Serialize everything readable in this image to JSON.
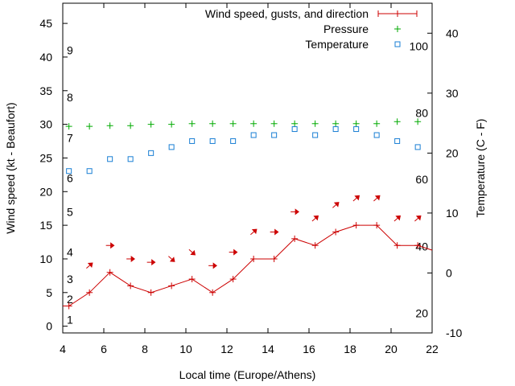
{
  "chart_data": {
    "type": "line",
    "title": "",
    "xlabel": "Local time (Europe/Athens)",
    "ylabel": "Wind speed (kt - Beaufort)",
    "y2label": "Temperature (C - F)",
    "xlim": [
      4,
      22
    ],
    "ylim": [
      -1,
      48
    ],
    "y2lim": [
      -10,
      45
    ],
    "grid": false,
    "legend_position": "top-right",
    "x_ticks": [
      4,
      6,
      8,
      10,
      12,
      14,
      16,
      18,
      20,
      22
    ],
    "y_ticks": [
      0,
      5,
      10,
      15,
      20,
      25,
      30,
      35,
      40,
      45
    ],
    "y2_ticks": [
      -10,
      0,
      10,
      20,
      30,
      40
    ],
    "beaufort_labels": [
      {
        "label": "1",
        "kt": 1
      },
      {
        "label": "2",
        "kt": 4
      },
      {
        "label": "3",
        "kt": 7
      },
      {
        "label": "4",
        "kt": 11
      },
      {
        "label": "5",
        "kt": 17
      },
      {
        "label": "6",
        "kt": 22
      },
      {
        "label": "7",
        "kt": 28
      },
      {
        "label": "8",
        "kt": 34
      },
      {
        "label": "9",
        "kt": 41
      }
    ],
    "fahrenheit_labels": [
      {
        "label": "20",
        "c": -6.7
      },
      {
        "label": "40",
        "c": 4.4
      },
      {
        "label": "60",
        "c": 15.6
      },
      {
        "label": "80",
        "c": 26.7
      },
      {
        "label": "100",
        "c": 37.8
      }
    ],
    "series": [
      {
        "name": "Wind speed, gusts, and direction",
        "axis": "y1",
        "color": "#cc0000",
        "x": [
          3.3,
          4.3,
          5.3,
          6.3,
          7.3,
          8.3,
          9.3,
          10.3,
          11.3,
          12.3,
          13.3,
          14.3,
          15.3,
          16.3,
          17.3,
          18.3,
          19.3,
          20.3,
          21.3,
          22.3
        ],
        "values": [
          3,
          3,
          5,
          8,
          6,
          5,
          6,
          7,
          5,
          7,
          10,
          10,
          13,
          12,
          14,
          15,
          15,
          12,
          12,
          11
        ]
      },
      {
        "name": "Pressure",
        "axis": "y1",
        "color": "#00aa00",
        "x": [
          4.3,
          5.3,
          6.3,
          7.3,
          8.3,
          9.3,
          10.3,
          11.3,
          12.3,
          13.3,
          14.3,
          15.3,
          16.3,
          17.3,
          18.3,
          19.3,
          20.3,
          21.3
        ],
        "values": [
          29.7,
          29.7,
          29.8,
          29.8,
          30.0,
          30.0,
          30.1,
          30.1,
          30.1,
          30.1,
          30.1,
          30.1,
          30.1,
          30.1,
          30.1,
          30.1,
          30.4,
          30.4
        ]
      },
      {
        "name": "Temperature",
        "axis": "y2",
        "color": "#1a7fd4",
        "x": [
          4.3,
          5.3,
          6.3,
          7.3,
          8.3,
          9.3,
          10.3,
          11.3,
          12.3,
          13.3,
          14.3,
          15.3,
          16.3,
          17.3,
          18.3,
          19.3,
          20.3,
          21.3
        ],
        "values": [
          17,
          17,
          19,
          19,
          20,
          21,
          22,
          22,
          22,
          23,
          23,
          24,
          23,
          24,
          24,
          23,
          22,
          21
        ]
      }
    ],
    "wind_direction_arrows": {
      "color": "#cc0000",
      "points": [
        {
          "x": 5.3,
          "kt": 9,
          "dir": "NE"
        },
        {
          "x": 6.3,
          "kt": 12,
          "dir": "E"
        },
        {
          "x": 7.3,
          "kt": 10,
          "dir": "E"
        },
        {
          "x": 8.3,
          "kt": 9.5,
          "dir": "E"
        },
        {
          "x": 9.3,
          "kt": 10,
          "dir": "SE"
        },
        {
          "x": 10.3,
          "kt": 11,
          "dir": "SE"
        },
        {
          "x": 11.3,
          "kt": 9,
          "dir": "E"
        },
        {
          "x": 12.3,
          "kt": 11,
          "dir": "E"
        },
        {
          "x": 13.3,
          "kt": 14,
          "dir": "NE"
        },
        {
          "x": 14.3,
          "kt": 14,
          "dir": "E"
        },
        {
          "x": 15.3,
          "kt": 17,
          "dir": "E"
        },
        {
          "x": 16.3,
          "kt": 16,
          "dir": "NE"
        },
        {
          "x": 17.3,
          "kt": 18,
          "dir": "NE"
        },
        {
          "x": 18.3,
          "kt": 19,
          "dir": "NE"
        },
        {
          "x": 19.3,
          "kt": 19,
          "dir": "NE"
        },
        {
          "x": 20.3,
          "kt": 16,
          "dir": "NE"
        },
        {
          "x": 21.3,
          "kt": 16,
          "dir": "NE"
        }
      ]
    }
  }
}
